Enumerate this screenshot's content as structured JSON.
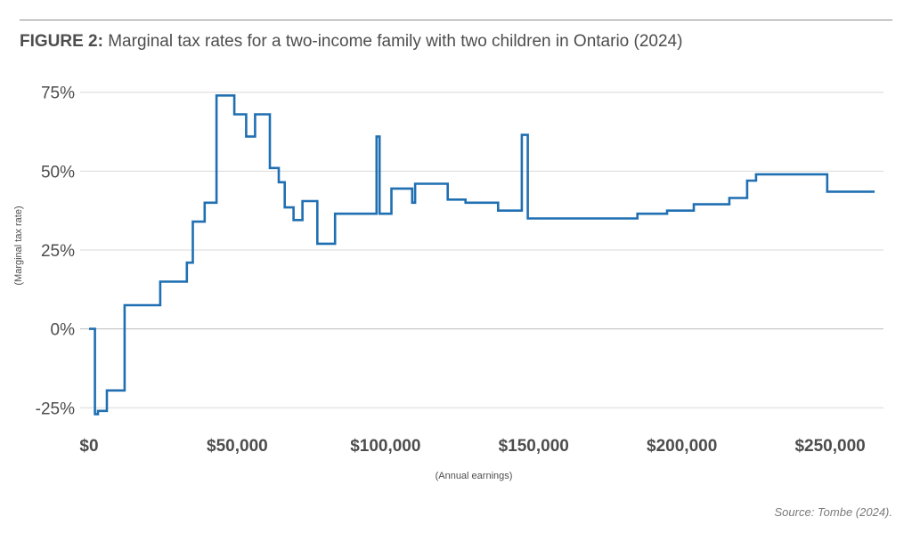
{
  "figure": {
    "label": "FIGURE 2:",
    "title": "Marginal tax rates for a two-income family with two children in Ontario (2024)",
    "source": "Source: Tombe (2024)."
  },
  "colors": {
    "line": "#1f6fb2",
    "grid": "#d9d9d9",
    "zero_line": "#bdbdbd",
    "text": "#4d4d4d"
  },
  "chart_data": {
    "type": "line",
    "step": true,
    "title": "Marginal tax rates for a two-income family with two children in Ontario (2024)",
    "xlabel": "(Annual earnings)",
    "ylabel": "(Marginal tax rate)",
    "xlim": [
      -3000,
      268000
    ],
    "ylim": [
      -30,
      80
    ],
    "xticks": [
      0,
      50000,
      100000,
      150000,
      200000,
      250000
    ],
    "xtick_labels": [
      "$0",
      "$50,000",
      "$100,000",
      "$150,000",
      "$200,000",
      "$250,000"
    ],
    "yticks": [
      75,
      50,
      25,
      0,
      -25
    ],
    "ytick_labels": [
      "75%",
      "50%",
      "25%",
      "0%",
      "-25%"
    ],
    "grid": "horizontal",
    "series": [
      {
        "x": [
          0,
          2000,
          2000,
          3000,
          3000,
          6000,
          6000,
          12000,
          12000,
          24000,
          24000,
          33000,
          33000,
          35000,
          35000,
          39000,
          39000,
          43000,
          43000,
          49000,
          49000,
          53000,
          53000,
          56000,
          56000,
          60000,
          60000,
          61000,
          61000,
          64000,
          64000,
          66000,
          66000,
          69000,
          69000,
          72000,
          72000,
          77000,
          77000,
          83000,
          83000,
          97000,
          97000,
          98000,
          98000,
          102000,
          102000,
          109000,
          109000,
          110000,
          110000,
          121000,
          121000,
          127000,
          127000,
          138000,
          138000,
          146000,
          146000,
          148000,
          148000,
          185000,
          185000,
          195000,
          195000,
          204000,
          204000,
          216000,
          216000,
          222000,
          222000,
          225000,
          225000,
          249000,
          249000,
          265000
        ],
        "y": [
          0,
          0,
          -27,
          -27,
          -26,
          -26,
          -19.5,
          -19.5,
          7.5,
          7.5,
          15,
          15,
          21,
          21,
          34,
          34,
          40,
          40,
          74,
          74,
          68,
          68,
          61,
          61,
          68,
          68,
          68,
          68,
          51,
          51,
          46.5,
          46.5,
          38.5,
          38.5,
          34.5,
          34.5,
          40.5,
          40.5,
          27,
          27,
          36.5,
          36.5,
          61,
          61,
          36.5,
          36.5,
          44.5,
          44.5,
          40,
          40,
          46,
          46,
          41,
          41,
          40,
          40,
          37.5,
          37.5,
          61.5,
          61.5,
          35,
          35,
          36.5,
          36.5,
          37.5,
          37.5,
          39.5,
          39.5,
          41.5,
          41.5,
          47,
          47,
          49,
          49,
          43.5,
          43.5
        ]
      }
    ]
  }
}
